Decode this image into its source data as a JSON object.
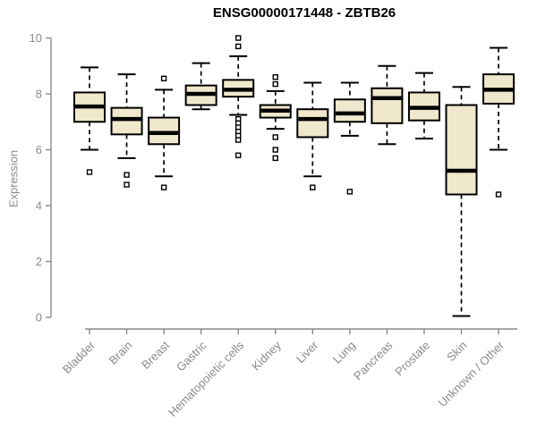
{
  "chart_data": {
    "type": "box",
    "title": "ENSG00000171448 - ZBTB26",
    "ylabel": "Expression",
    "xlabel": "",
    "ylim": [
      0,
      10
    ],
    "yticks": [
      0,
      2,
      4,
      6,
      8,
      10
    ],
    "grid": false,
    "legend": "none",
    "categories": [
      "Bladder",
      "Brain",
      "Breast",
      "Gastric",
      "Hematopoietic cells",
      "Kidney",
      "Liver",
      "Lung",
      "Pancreas",
      "Prostate",
      "Skin",
      "Unknown / Other"
    ],
    "series": [
      {
        "name": "Bladder",
        "low": 6.0,
        "q1": 7.0,
        "median": 7.55,
        "q3": 8.05,
        "high": 8.95,
        "outliers": [
          5.2
        ]
      },
      {
        "name": "Brain",
        "low": 5.7,
        "q1": 6.55,
        "median": 7.1,
        "q3": 7.5,
        "high": 8.7,
        "outliers": [
          5.1,
          4.75
        ]
      },
      {
        "name": "Breast",
        "low": 5.05,
        "q1": 6.2,
        "median": 6.6,
        "q3": 7.15,
        "high": 8.15,
        "outliers": [
          8.55,
          4.65
        ]
      },
      {
        "name": "Gastric",
        "low": 7.45,
        "q1": 7.6,
        "median": 8.0,
        "q3": 8.3,
        "high": 9.1,
        "outliers": []
      },
      {
        "name": "Hematopoietic cells",
        "low": 7.25,
        "q1": 7.9,
        "median": 8.15,
        "q3": 8.5,
        "high": 9.35,
        "outliers": [
          10.0,
          9.7,
          7.1,
          6.95,
          6.8,
          6.65,
          6.5,
          6.35,
          5.8
        ]
      },
      {
        "name": "Kidney",
        "low": 6.75,
        "q1": 7.15,
        "median": 7.4,
        "q3": 7.6,
        "high": 8.1,
        "outliers": [
          8.6,
          8.35,
          6.45,
          6.0,
          5.7
        ]
      },
      {
        "name": "Liver",
        "low": 5.05,
        "q1": 6.45,
        "median": 7.1,
        "q3": 7.45,
        "high": 8.4,
        "outliers": [
          4.65
        ]
      },
      {
        "name": "Lung",
        "low": 6.5,
        "q1": 7.0,
        "median": 7.3,
        "q3": 7.8,
        "high": 8.4,
        "outliers": [
          4.5
        ]
      },
      {
        "name": "Pancreas",
        "low": 6.2,
        "q1": 6.95,
        "median": 7.85,
        "q3": 8.2,
        "high": 9.0,
        "outliers": []
      },
      {
        "name": "Prostate",
        "low": 6.4,
        "q1": 7.05,
        "median": 7.5,
        "q3": 8.05,
        "high": 8.75,
        "outliers": []
      },
      {
        "name": "Skin",
        "low": 0.05,
        "q1": 4.4,
        "median": 5.25,
        "q3": 7.6,
        "high": 8.25,
        "outliers": []
      },
      {
        "name": "Unknown / Other",
        "low": 6.0,
        "q1": 7.65,
        "median": 8.15,
        "q3": 8.7,
        "high": 9.65,
        "outliers": [
          4.4
        ]
      }
    ],
    "colors": {
      "box_fill": "#f0e8cc",
      "box_stroke": "#000000",
      "median": "#000000",
      "whisker": "#000000",
      "outlier_fill": "#ffffff",
      "axis": "#8a8a8a",
      "tick_label": "#8a8a8a",
      "title": "#000000",
      "background": "#ffffff"
    }
  }
}
